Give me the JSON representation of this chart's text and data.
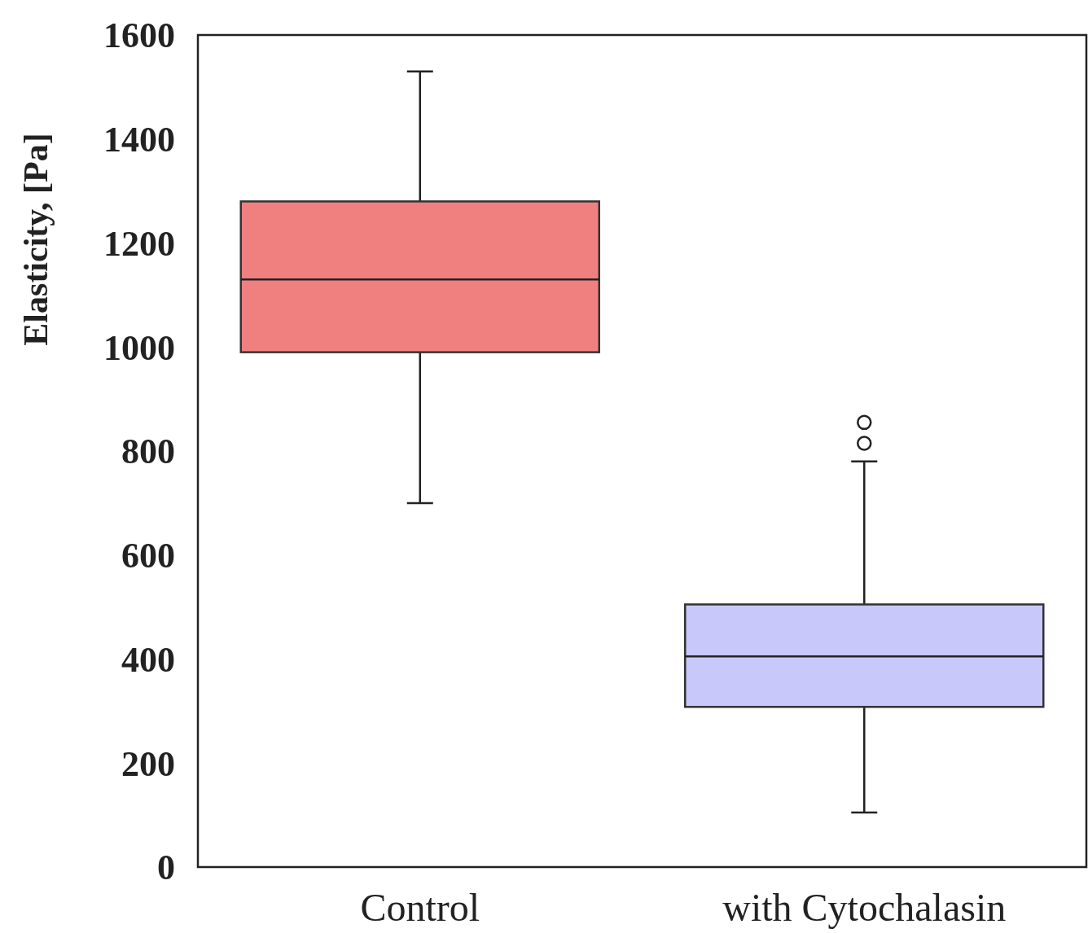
{
  "chart_data": {
    "type": "box",
    "ylabel": "Elasticity, [Pa]",
    "categories": [
      "Control",
      "with Cytochalasin"
    ],
    "boxes": [
      {
        "low": 700,
        "q1": 990,
        "median": 1130,
        "q3": 1280,
        "high": 1530
      },
      {
        "low": 105,
        "q1": 308,
        "median": 405,
        "q3": 505,
        "high": 780,
        "outliers": [
          815,
          855
        ]
      }
    ],
    "colors": [
      "#f08080",
      "#c8c8fa"
    ],
    "ylim": [
      0,
      1600
    ],
    "yticks": [
      0,
      200,
      400,
      600,
      800,
      1000,
      1200,
      1400,
      1600
    ]
  }
}
